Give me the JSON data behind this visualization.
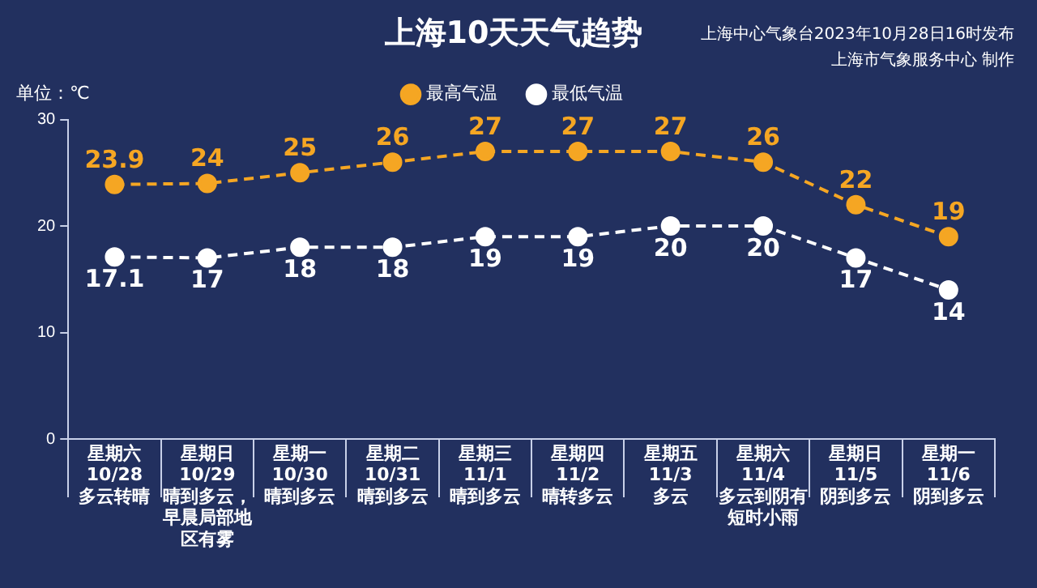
{
  "chart_data": {
    "type": "line",
    "title": "上海10天天气趋势",
    "ylabel": "单位：℃",
    "categories": [
      "星期六\n10/28\n多云转晴",
      "星期日\n10/29\n晴到多云，早晨局部地区有雾",
      "星期一\n10/30\n晴到多云",
      "星期二\n10/31\n晴到多云",
      "星期三\n11/1\n晴到多云",
      "星期四\n11/2\n晴转多云",
      "星期五\n11/3\n多云",
      "星期六\n11/4\n多云到阴有短时小雨",
      "星期日\n11/5\n阴到多云",
      "星期一\n11/6\n阴到多云"
    ],
    "series": [
      {
        "name": "最高气温",
        "color": "#f5a623",
        "values": [
          23.9,
          24,
          25,
          26,
          27,
          27,
          27,
          26,
          22,
          19
        ]
      },
      {
        "name": "最低气温",
        "color": "#ffffff",
        "values": [
          17.1,
          17,
          18,
          18,
          19,
          19,
          20,
          20,
          17,
          14
        ]
      }
    ],
    "ylim": [
      0,
      30
    ],
    "yticks": [
      0,
      10,
      20,
      30
    ],
    "grid": false,
    "legend": "top",
    "marker": "circle",
    "line_style": "dashed",
    "data_labels": true,
    "annotations": [
      "上海中心气象台2023年10月28日16时发布",
      "上海市气象服务中心 制作"
    ]
  }
}
